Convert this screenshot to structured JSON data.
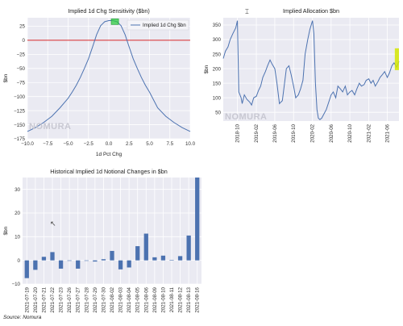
{
  "watermark": "NOMURA",
  "source": "Source: Nomura",
  "colors": {
    "line": "#4c72b0",
    "bar": "#4c72b0",
    "zero_line": "#d62728",
    "highlight_green": "#2ecc40",
    "highlight_yellow": "#d4e600",
    "plot_background": "#eaeaf2"
  },
  "chart_data": [
    {
      "type": "line",
      "title": "Implied 1d Chg Sensitivity ($bn)",
      "xlabel": "1d Pct Chg",
      "ylabel": "$bn",
      "xlim": [
        -10,
        10
      ],
      "ylim": [
        -175,
        40
      ],
      "xticks": [
        -10.0,
        -7.5,
        -5.0,
        -2.5,
        0.0,
        2.5,
        5.0,
        7.5,
        10.0
      ],
      "xtick_labels": [
        "−10.0",
        "−7.5",
        "−5.0",
        "−2.5",
        "0.0",
        "2.5",
        "5.0",
        "7.5",
        "10.0"
      ],
      "yticks": [
        25,
        0,
        -25,
        -50,
        -75,
        -100,
        -125,
        -150,
        -175
      ],
      "ytick_labels": [
        "25",
        "0",
        "−25",
        "−50",
        "−75",
        "−100",
        "−125",
        "−150",
        "−175"
      ],
      "horizontal_line": 0,
      "legend": {
        "position": "top-right",
        "entries": [
          "Implied 1d Chg $bn"
        ]
      },
      "series": [
        {
          "name": "Implied 1d Chg $bn",
          "x": [
            -10,
            -9,
            -8,
            -7,
            -6,
            -5,
            -4.5,
            -4,
            -3.5,
            -3,
            -2.5,
            -2,
            -1.5,
            -1,
            -0.5,
            0,
            0.5,
            1,
            1.5,
            2,
            2.5,
            3,
            3.5,
            4,
            4.5,
            5,
            6,
            7,
            8,
            9,
            10
          ],
          "y": [
            -162,
            -155,
            -146,
            -135,
            -120,
            -103,
            -92,
            -80,
            -66,
            -50,
            -33,
            -12,
            10,
            26,
            33,
            35,
            35,
            33,
            26,
            10,
            -12,
            -33,
            -50,
            -66,
            -80,
            -92,
            -120,
            -135,
            -146,
            -155,
            -162
          ]
        }
      ],
      "highlight": {
        "color": "green",
        "x": [
          0.3,
          1.2
        ],
        "y": [
          28,
          38
        ]
      }
    },
    {
      "type": "line",
      "title": "Implied Allocation $bn",
      "ylabel": "$bn",
      "ylim": [
        20,
        375
      ],
      "yticks": [
        350,
        300,
        250,
        200,
        150,
        100,
        50
      ],
      "xtick_labels": [
        "2018-10",
        "2019-02",
        "2019-06",
        "2019-10",
        "2020-02",
        "2020-06",
        "2020-10",
        "2021-02",
        "2021-06"
      ],
      "series": [
        {
          "name": "Implied Allocation",
          "x": [
            "2018-07",
            "2018-07-15",
            "2018-08",
            "2018-08-15",
            "2018-09",
            "2018-09-20",
            "2018-10",
            "2018-10-10",
            "2018-10-25",
            "2018-11",
            "2018-11-15",
            "2018-12",
            "2018-12-20",
            "2019-01",
            "2019-01-15",
            "2019-02",
            "2019-02-15",
            "2019-03",
            "2019-03-15",
            "2019-04",
            "2019-04-15",
            "2019-05",
            "2019-05-15",
            "2019-06",
            "2019-06-15",
            "2019-07",
            "2019-07-20",
            "2019-08",
            "2019-08-15",
            "2019-09",
            "2019-09-15",
            "2019-10",
            "2019-10-15",
            "2019-11",
            "2019-11-15",
            "2019-12",
            "2019-12-15",
            "2020-01",
            "2020-01-15",
            "2020-02",
            "2020-02-10",
            "2020-02-20",
            "2020-03",
            "2020-03-10",
            "2020-03-20",
            "2020-04",
            "2020-05",
            "2020-06",
            "2020-06-15",
            "2020-07",
            "2020-07-15",
            "2020-08",
            "2020-08-15",
            "2020-09",
            "2020-09-15",
            "2020-10",
            "2020-10-15",
            "2020-11",
            "2020-11-15",
            "2020-12",
            "2020-12-15",
            "2021-01",
            "2021-01-15",
            "2021-02",
            "2021-02-15",
            "2021-03",
            "2021-03-15",
            "2021-04",
            "2021-04-15",
            "2021-05",
            "2021-05-15",
            "2021-06",
            "2021-06-15",
            "2021-07",
            "2021-07-15",
            "2021-08",
            "2021-08-16"
          ],
          "y": [
            235,
            260,
            275,
            300,
            320,
            340,
            365,
            120,
            100,
            80,
            110,
            95,
            85,
            75,
            100,
            105,
            125,
            140,
            170,
            190,
            210,
            230,
            215,
            200,
            150,
            80,
            90,
            140,
            200,
            210,
            180,
            140,
            100,
            110,
            130,
            160,
            250,
            300,
            335,
            365,
            320,
            150,
            60,
            30,
            25,
            30,
            60,
            110,
            120,
            100,
            140,
            130,
            120,
            140,
            110,
            120,
            125,
            110,
            130,
            150,
            140,
            145,
            160,
            165,
            150,
            160,
            140,
            155,
            170,
            180,
            190,
            170,
            185,
            210,
            220,
            205,
            225
          ]
        }
      ],
      "highlight": {
        "color": "yellow",
        "x": [
          "2021-07-20",
          "2021-08-16"
        ],
        "y": [
          195,
          270
        ]
      }
    },
    {
      "type": "bar",
      "title": "Historical Implied 1d Notional Changes in $bn",
      "ylabel": "$bn",
      "ylim": [
        -10,
        35
      ],
      "yticks": [
        30,
        20,
        10,
        0,
        -10
      ],
      "ytick_labels": [
        "30",
        "20",
        "10",
        "0",
        "−10"
      ],
      "categories": [
        "2021-07-19",
        "2021-07-20",
        "2021-07-21",
        "2021-07-22",
        "2021-07-23",
        "2021-07-26",
        "2021-07-27",
        "2021-07-28",
        "2021-07-29",
        "2021-07-30",
        "2021-08-02",
        "2021-08-03",
        "2021-08-04",
        "2021-08-05",
        "2021-08-06",
        "2021-08-09",
        "2021-08-10",
        "2021-08-11",
        "2021-08-12",
        "2021-08-13",
        "2021-08-16"
      ],
      "series": [
        {
          "name": "",
          "values": [
            -7.5,
            -4.0,
            1.5,
            3.5,
            -3.5,
            0.0,
            -3.5,
            0.0,
            -0.5,
            0.5,
            4.0,
            -3.8,
            -3.0,
            6.0,
            11.3,
            1.3,
            2.0,
            0.2,
            1.8,
            10.5,
            35.0
          ]
        }
      ]
    }
  ]
}
